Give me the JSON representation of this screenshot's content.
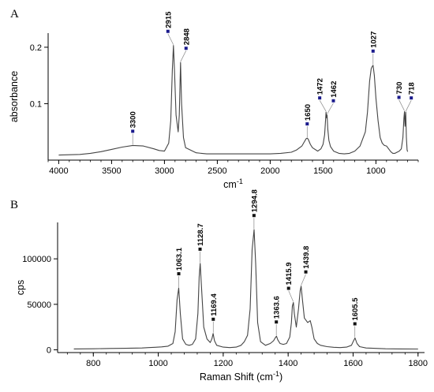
{
  "chart_data": [
    {
      "panel": "A",
      "type": "line",
      "title": "",
      "xlabel": "cm",
      "xlabel_sup": "-1",
      "ylabel": "absorbance",
      "xlim": [
        4100,
        600
      ],
      "ylim": [
        0,
        0.225
      ],
      "x_reversed": true,
      "grid": false,
      "xticks": [
        4000,
        3500,
        3000,
        2500,
        2000,
        1500,
        1000
      ],
      "xtick_labels": [
        "4000",
        "3500",
        "3000",
        "2500",
        "2000",
        "1500",
        "1000"
      ],
      "yticks": [
        0.1,
        0.2
      ],
      "ytick_labels": [
        "0.1",
        "0.2"
      ],
      "marker_color": "#1a1a8c",
      "line_color": "#444444",
      "series": [
        {
          "x": [
            4000,
            3800,
            3700,
            3600,
            3500,
            3400,
            3300,
            3200,
            3100,
            3050,
            3000,
            2960,
            2940,
            2925,
            2915,
            2905,
            2890,
            2870,
            2860,
            2848,
            2838,
            2820,
            2800,
            2700,
            2600,
            2500,
            2400,
            2300,
            2200,
            2100,
            2000,
            1900,
            1800,
            1750,
            1700,
            1675,
            1660,
            1650,
            1640,
            1620,
            1600,
            1550,
            1520,
            1500,
            1485,
            1478,
            1472,
            1467,
            1462,
            1455,
            1445,
            1430,
            1400,
            1350,
            1300,
            1250,
            1200,
            1150,
            1100,
            1080,
            1060,
            1045,
            1035,
            1027,
            1015,
            1000,
            980,
            960,
            940,
            920,
            900,
            880,
            860,
            840,
            820,
            800,
            780,
            760,
            745,
            735,
            730,
            725,
            718,
            712,
            705,
            700
          ],
          "y": [
            0.009,
            0.01,
            0.012,
            0.015,
            0.019,
            0.023,
            0.026,
            0.025,
            0.02,
            0.017,
            0.016,
            0.03,
            0.07,
            0.16,
            0.203,
            0.16,
            0.08,
            0.05,
            0.08,
            0.173,
            0.1,
            0.04,
            0.022,
            0.013,
            0.011,
            0.011,
            0.011,
            0.011,
            0.011,
            0.011,
            0.011,
            0.012,
            0.014,
            0.018,
            0.025,
            0.033,
            0.038,
            0.039,
            0.037,
            0.028,
            0.022,
            0.016,
            0.02,
            0.028,
            0.045,
            0.065,
            0.085,
            0.075,
            0.08,
            0.055,
            0.035,
            0.024,
            0.016,
            0.012,
            0.011,
            0.012,
            0.016,
            0.025,
            0.05,
            0.085,
            0.14,
            0.162,
            0.166,
            0.168,
            0.15,
            0.11,
            0.07,
            0.04,
            0.03,
            0.026,
            0.025,
            0.02,
            0.015,
            0.012,
            0.012,
            0.014,
            0.016,
            0.02,
            0.04,
            0.075,
            0.086,
            0.06,
            0.085,
            0.04,
            0.018,
            0.015
          ]
        }
      ],
      "peaks": [
        {
          "x": 3300,
          "y": 0.026,
          "label": "3300",
          "dx": 0
        },
        {
          "x": 2915,
          "y": 0.203,
          "label": "2915",
          "dx": -7
        },
        {
          "x": 2848,
          "y": 0.173,
          "label": "2848",
          "dx": 7
        },
        {
          "x": 1650,
          "y": 0.039,
          "label": "1650",
          "dx": 0
        },
        {
          "x": 1472,
          "y": 0.085,
          "label": "1472",
          "dx": -8
        },
        {
          "x": 1462,
          "y": 0.08,
          "label": "1462",
          "dx": 8
        },
        {
          "x": 1027,
          "y": 0.168,
          "label": "1027",
          "dx": 0
        },
        {
          "x": 730,
          "y": 0.086,
          "label": "730",
          "dx": -7
        },
        {
          "x": 718,
          "y": 0.085,
          "label": "718",
          "dx": 7
        }
      ]
    },
    {
      "panel": "B",
      "type": "line",
      "title": "",
      "xlabel": "Raman Shift (cm",
      "xlabel_sup": "-1",
      "xlabel_end": ")",
      "ylabel": "cps",
      "xlim": [
        690,
        1820
      ],
      "ylim": [
        -3000,
        140000
      ],
      "x_reversed": false,
      "grid": false,
      "xticks": [
        800,
        1000,
        1200,
        1400,
        1600,
        1800
      ],
      "xtick_labels": [
        "800",
        "1000",
        "1200",
        "1400",
        "1600",
        "1800"
      ],
      "yticks": [
        0,
        50000,
        100000
      ],
      "ytick_labels": [
        "0",
        "50000",
        "100000"
      ],
      "marker_color": "#111111",
      "line_color": "#444444",
      "series": [
        {
          "x": [
            740,
            800,
            850,
            900,
            950,
            970,
            990,
            1010,
            1030,
            1045,
            1052,
            1058,
            1063,
            1068,
            1075,
            1085,
            1095,
            1105,
            1115,
            1122,
            1126,
            1129,
            1133,
            1140,
            1150,
            1160,
            1165,
            1169,
            1173,
            1180,
            1200,
            1220,
            1240,
            1255,
            1265,
            1275,
            1283,
            1289,
            1295,
            1300,
            1306,
            1315,
            1330,
            1345,
            1355,
            1360,
            1364,
            1368,
            1375,
            1385,
            1395,
            1405,
            1410,
            1413,
            1416,
            1419,
            1425,
            1432,
            1437,
            1440,
            1444,
            1450,
            1460,
            1468,
            1473,
            1480,
            1490,
            1500,
            1520,
            1540,
            1560,
            1580,
            1595,
            1600,
            1606,
            1612,
            1620,
            1640,
            1700,
            1750,
            1800
          ],
          "y": [
            1000,
            1200,
            1500,
            1700,
            2000,
            2500,
            2800,
            3200,
            4000,
            7000,
            20000,
            55000,
            68000,
            40000,
            12000,
            6000,
            5000,
            6000,
            12000,
            40000,
            80000,
            95000,
            70000,
            25000,
            12000,
            8000,
            12000,
            18000,
            10000,
            5000,
            3000,
            2500,
            3000,
            5000,
            9000,
            16000,
            45000,
            110000,
            132000,
            95000,
            30000,
            9000,
            5000,
            7000,
            10000,
            13000,
            15000,
            11000,
            7000,
            6000,
            7000,
            14000,
            30000,
            48000,
            52000,
            40000,
            25000,
            45000,
            65000,
            70000,
            55000,
            35000,
            30000,
            32000,
            25000,
            12000,
            7000,
            5000,
            3500,
            2800,
            2500,
            3000,
            5000,
            9000,
            13000,
            7000,
            3500,
            2000,
            1200,
            1000,
            900
          ]
        }
      ],
      "peaks": [
        {
          "x": 1063.1,
          "y": 68000,
          "label": "1063.1",
          "dx": 0
        },
        {
          "x": 1128.7,
          "y": 95000,
          "label": "1128.7",
          "dx": 0
        },
        {
          "x": 1169.4,
          "y": 18000,
          "label": "1169.4",
          "dx": 0
        },
        {
          "x": 1294.8,
          "y": 132000,
          "label": "1294.8",
          "dx": 0
        },
        {
          "x": 1363.6,
          "y": 15000,
          "label": "1363.6",
          "dx": 0
        },
        {
          "x": 1415.9,
          "y": 52000,
          "label": "1415.9",
          "dx": -6
        },
        {
          "x": 1439.8,
          "y": 70000,
          "label": "1439.8",
          "dx": 6
        },
        {
          "x": 1605.5,
          "y": 13000,
          "label": "1605.5",
          "dx": 0
        }
      ]
    }
  ]
}
